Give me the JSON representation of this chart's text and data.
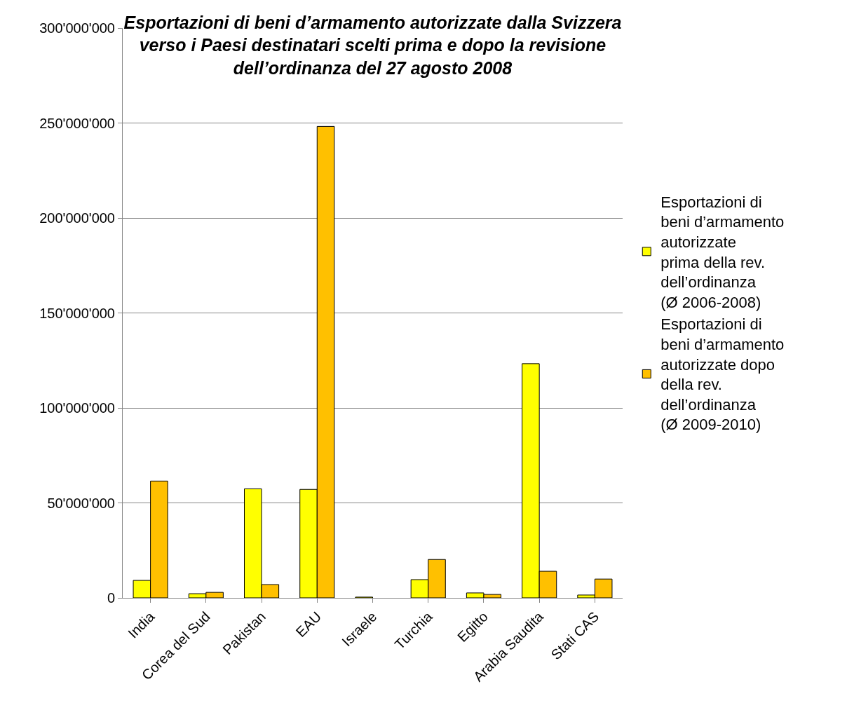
{
  "chart_data": {
    "type": "bar",
    "title": "Esportazioni di beni d’armamento autorizzate dalla Svizzera verso i Paesi destinatari scelti prima e dopo la revisione dell’ordinanza del 27 agosto 2008",
    "categories": [
      "India",
      "Corea del Sud",
      "Pakistan",
      "EAU",
      "Israele",
      "Turchia",
      "Egitto",
      "Arabia Saudita",
      "Stati CAS"
    ],
    "series": [
      {
        "name": "Esportazioni di beni d’armamento autorizzate prima della rev. dell’ordinanza (Ø 2006-2008)",
        "color": "#ffff00",
        "values": [
          9200000,
          2200000,
          57400000,
          57100000,
          400000,
          9600000,
          2600000,
          123300000,
          1500000
        ]
      },
      {
        "name": "Esportazioni di beni d’armamento autorizzate dopo della rev. dell’ordinanza (Ø 2009-2010)",
        "color": "#ffc000",
        "values": [
          61500000,
          2900000,
          7000000,
          248200000,
          null,
          20200000,
          1800000,
          14000000,
          9900000
        ]
      }
    ],
    "ylim": [
      0,
      300000000
    ],
    "yticks": [
      {
        "value": 0,
        "label": "0"
      },
      {
        "value": 50000000,
        "label": "50'000'000"
      },
      {
        "value": 100000000,
        "label": "100'000'000"
      },
      {
        "value": 150000000,
        "label": "150'000'000"
      },
      {
        "value": 200000000,
        "label": "200'000'000"
      },
      {
        "value": 250000000,
        "label": "250'000'000"
      },
      {
        "value": 300000000,
        "label": "300'000'000"
      }
    ],
    "grid": "y",
    "legend": "right"
  }
}
